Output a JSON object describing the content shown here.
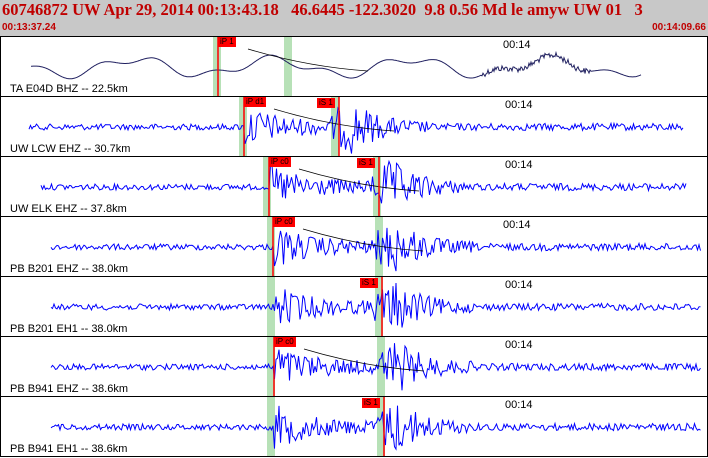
{
  "header": {
    "title": "60746872 UW Apr 29, 2014 00:13:43.18   46.6445 -122.3020  9.8 0.56 Md le amyw UW 01   3",
    "time_start": "00:13:37.24",
    "time_end": "00:14:09.66"
  },
  "colors": {
    "header_bg": "#c8c8c8",
    "title_text": "#c00000",
    "trace_blue": "#0000ff",
    "trace_long_period": "#202060",
    "pick_box": "#ff0000",
    "window_green": "#b7e1b7"
  },
  "panels": [
    {
      "label": "TA E04D BHZ -- 22.5km",
      "tick": "00:14",
      "p_pick": "iP 1",
      "s_pick": "",
      "style": "long-period"
    },
    {
      "label": "UW LCW EHZ -- 30.7km",
      "tick": "00:14",
      "p_pick": "iP d1",
      "s_pick": "iS 1",
      "style": "broadband"
    },
    {
      "label": "UW ELK EHZ -- 37.8km",
      "tick": "00:14",
      "p_pick": "iP c0",
      "s_pick": "iS 1",
      "style": "broadband"
    },
    {
      "label": "PB B201 EHZ -- 38.0km",
      "tick": "00:14",
      "p_pick": "iP c0",
      "s_pick": "",
      "style": "broadband"
    },
    {
      "label": "PB B201 EH1 -- 38.0km",
      "tick": "00:14",
      "p_pick": "",
      "s_pick": "iS 1",
      "style": "broadband"
    },
    {
      "label": "PB B941 EHZ -- 38.6km",
      "tick": "00:14",
      "p_pick": "iP c0",
      "s_pick": "",
      "style": "broadband"
    },
    {
      "label": "PB B941 EH1 -- 38.6km",
      "tick": "00:14",
      "p_pick": "",
      "s_pick": "iS 1",
      "style": "broadband"
    }
  ]
}
